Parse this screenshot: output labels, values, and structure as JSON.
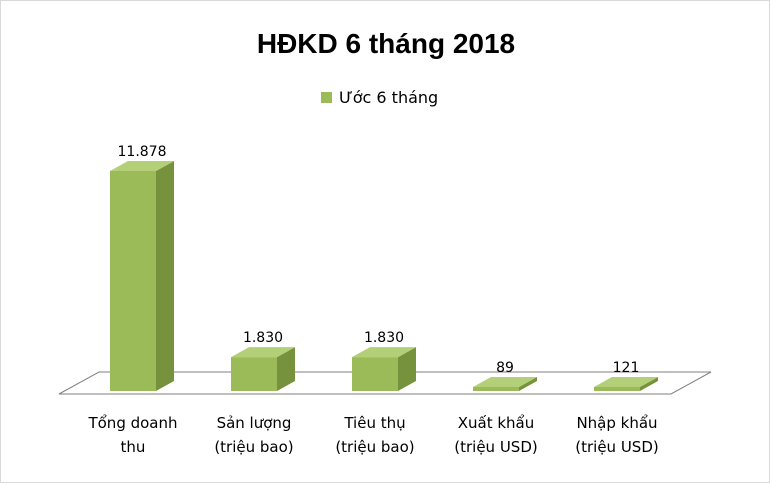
{
  "chart_data": {
    "type": "bar",
    "title": "HĐKD 6 tháng 2018",
    "legend": "top",
    "categories": [
      [
        "Tổng doanh",
        "thu"
      ],
      [
        "Sản lượng",
        "(triệu bao)"
      ],
      [
        "Tiêu thụ",
        "(triệu bao)"
      ],
      [
        "Xuất khẩu",
        "(triệu USD)"
      ],
      [
        "Nhập khẩu",
        "(triệu USD)"
      ]
    ],
    "series": [
      {
        "name": "Ước 6 tháng",
        "values": [
          11878,
          1830,
          1830,
          89,
          121
        ],
        "labels": [
          "11.878",
          "1.830",
          "1.830",
          "89",
          "121"
        ]
      }
    ],
    "grid": false,
    "colors": {
      "bar_front": "#9bbb59",
      "bar_side": "#76923c",
      "bar_top": "#b3cf78",
      "floor_stroke": "#7f7f7f"
    }
  }
}
